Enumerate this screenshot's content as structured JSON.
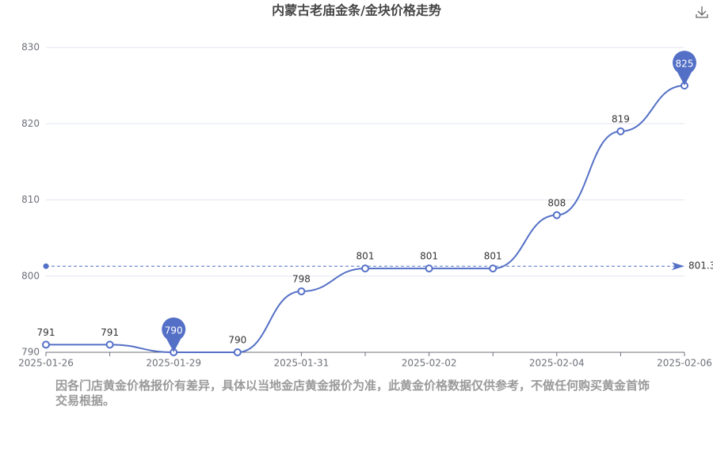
{
  "chart_data": {
    "type": "line",
    "title": "内蒙古老庙金条/金块价格走势",
    "categories": [
      "2025-01-26",
      null,
      "2025-01-29",
      null,
      "2025-01-31",
      null,
      "2025-02-02",
      null,
      "2025-02-04",
      null,
      "2025-02-06"
    ],
    "values": [
      791,
      791,
      790,
      790,
      798,
      801,
      801,
      801,
      808,
      819,
      825
    ],
    "color": "#5470c6",
    "ylim": [
      790,
      830
    ],
    "yticks": [
      790,
      800,
      810,
      820,
      830
    ],
    "grid": true,
    "average_line": 801.3
  },
  "note": "因各门店黄金价格报价有差异，具体以当地金店黄金报价为准，此黄金价格数据仅供参考，不做任何购买黄金首饰交易根据。"
}
